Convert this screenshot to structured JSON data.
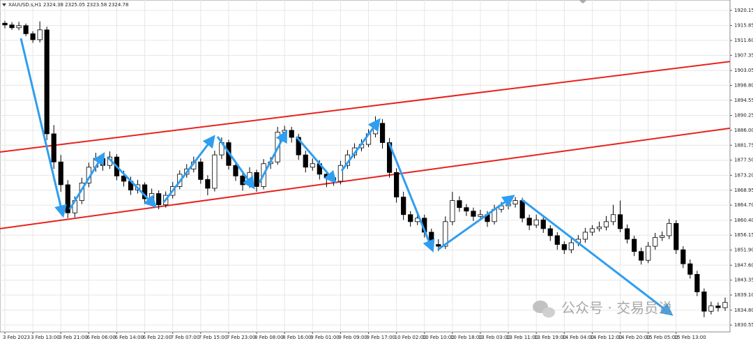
{
  "header": {
    "symbol": "XAUUSD.s,H1",
    "quote": "2324.38 2325.05 2323.58 2324.78"
  },
  "watermark": "公众号 · 交易员说",
  "chart_data": {
    "type": "candlestick",
    "categories": [
      "3 Feb 2023",
      null,
      null,
      null,
      "3 Feb 13:00",
      null,
      null,
      null,
      "3 Feb 21:00",
      null,
      null,
      null,
      "6 Feb 06:00",
      null,
      null,
      null,
      "6 Feb 14:00",
      null,
      null,
      null,
      "6 Feb 22:00",
      null,
      null,
      null,
      "7 Feb 07:00",
      null,
      null,
      null,
      "7 Feb 15:00",
      null,
      null,
      null,
      "7 Feb 23:00",
      null,
      null,
      null,
      "8 Feb 08:00",
      null,
      null,
      null,
      "8 Feb 16:00",
      null,
      null,
      null,
      "9 Feb 01:00",
      null,
      null,
      null,
      "9 Feb 09:00",
      null,
      null,
      null,
      "9 Feb 17:00",
      null,
      null,
      null,
      "10 Feb 02:00",
      null,
      null,
      null,
      "10 Feb 10:00",
      null,
      null,
      null,
      "10 Feb 18:00",
      null,
      null,
      null,
      "13 Feb 03:00",
      null,
      null,
      null,
      "13 Feb 11:00",
      null,
      null,
      null,
      "13 Feb 19:00",
      null,
      null,
      null,
      "14 Feb 04:00",
      null,
      null,
      null,
      "14 Feb 12:00",
      null,
      null,
      null,
      "14 Feb 20:00",
      null,
      null,
      null,
      "15 Feb 05:00",
      null,
      null,
      null,
      "15 Feb 13:00",
      null,
      null,
      null,
      null,
      null,
      null,
      null
    ],
    "open": [
      1916.5,
      1916.0,
      1915.2,
      1915.8,
      1913.5,
      1911.8,
      1914.6,
      1885.0,
      1877.0,
      1870.5,
      1862.5,
      1866.0,
      1871.0,
      1875.5,
      1878.0,
      1876.0,
      1878.4,
      1873.0,
      1871.5,
      1869.0,
      1870.5,
      1866.5,
      1868.0,
      1864.8,
      1867.5,
      1870.0,
      1873.5,
      1875.0,
      1877.0,
      1872.0,
      1869.5,
      1879.0,
      1882.5,
      1876.0,
      1873.0,
      1870.5,
      1874.0,
      1870.0,
      1876.5,
      1877.0,
      1885.5,
      1886.0,
      1884.0,
      1879.0,
      1875.5,
      1876.5,
      1873.5,
      1872.5,
      1871.5,
      1876.0,
      1879.0,
      1881.0,
      1882.0,
      1885.0,
      1888.0,
      1882.5,
      1874.0,
      1867.0,
      1862.0,
      1860.0,
      1861.0,
      1857.0,
      1853.5,
      1853.0,
      1860.0,
      1866.0,
      1864.0,
      1863.0,
      1861.5,
      1862.0,
      1860.0,
      1863.5,
      1864.5,
      1865.0,
      1866.0,
      1861.0,
      1859.0,
      1860.5,
      1858.0,
      1856.0,
      1853.5,
      1852.0,
      1854.0,
      1855.0,
      1857.0,
      1858.0,
      1858.5,
      1860.0,
      1862.0,
      1858.0,
      1855.0,
      1851.5,
      1849.0,
      1853.0,
      1855.5,
      1856.0,
      1859.5,
      1852.0,
      1848.0,
      1845.0,
      1840.0,
      1834.5,
      1836.0,
      1835.5
    ],
    "high": [
      1917.2,
      1916.8,
      1916.9,
      1916.4,
      1914.2,
      1917.0,
      1915.5,
      1887.5,
      1879.0,
      1871.8,
      1867.2,
      1872.5,
      1876.8,
      1879.6,
      1879.0,
      1880.0,
      1879.2,
      1874.5,
      1872.8,
      1871.9,
      1871.2,
      1869.4,
      1868.9,
      1868.6,
      1871.3,
      1874.6,
      1876.4,
      1878.5,
      1878.0,
      1873.2,
      1880.2,
      1884.0,
      1883.3,
      1877.0,
      1874.0,
      1875.5,
      1874.8,
      1877.8,
      1878.4,
      1887.0,
      1887.3,
      1887.0,
      1885.0,
      1880.2,
      1878.0,
      1877.5,
      1874.6,
      1873.8,
      1877.3,
      1880.4,
      1882.3,
      1883.5,
      1886.3,
      1890.0,
      1889.2,
      1883.8,
      1875.2,
      1868.5,
      1863.0,
      1862.6,
      1862.0,
      1858.0,
      1855.0,
      1861.5,
      1868.5,
      1867.2,
      1865.0,
      1864.0,
      1863.4,
      1863.0,
      1864.8,
      1865.6,
      1866.2,
      1867.0,
      1866.8,
      1862.0,
      1862.0,
      1861.4,
      1859.0,
      1857.0,
      1854.4,
      1855.3,
      1856.2,
      1858.2,
      1859.0,
      1860.0,
      1861.6,
      1864.8,
      1866.0,
      1859.2,
      1856.0,
      1852.6,
      1854.2,
      1856.8,
      1857.2,
      1860.8,
      1860.4,
      1853.0,
      1849.2,
      1846.0,
      1841.0,
      1837.2,
      1837.0,
      1838.4
    ],
    "low": [
      1915.0,
      1914.6,
      1914.5,
      1912.8,
      1910.9,
      1911.0,
      1883.2,
      1875.0,
      1868.5,
      1861.0,
      1861.2,
      1865.0,
      1869.8,
      1874.2,
      1874.5,
      1875.0,
      1871.8,
      1870.0,
      1867.6,
      1868.0,
      1865.0,
      1865.2,
      1863.5,
      1864.0,
      1866.6,
      1869.2,
      1872.5,
      1874.0,
      1870.8,
      1867.5,
      1868.6,
      1877.8,
      1874.8,
      1871.6,
      1868.8,
      1869.6,
      1868.5,
      1869.2,
      1875.0,
      1876.2,
      1884.2,
      1882.5,
      1877.6,
      1874.0,
      1874.5,
      1872.0,
      1869.8,
      1870.2,
      1870.6,
      1875.0,
      1878.0,
      1880.0,
      1881.2,
      1884.0,
      1880.8,
      1872.5,
      1865.4,
      1860.5,
      1858.6,
      1859.0,
      1855.5,
      1852.0,
      1851.6,
      1852.2,
      1859.0,
      1862.8,
      1861.6,
      1860.2,
      1860.6,
      1858.5,
      1859.2,
      1862.6,
      1863.5,
      1864.0,
      1859.8,
      1857.6,
      1858.2,
      1856.8,
      1854.5,
      1852.0,
      1850.8,
      1851.0,
      1853.0,
      1854.0,
      1856.0,
      1857.2,
      1857.5,
      1859.0,
      1857.0,
      1853.8,
      1850.2,
      1847.8,
      1848.2,
      1852.0,
      1854.5,
      1855.0,
      1850.8,
      1846.8,
      1843.8,
      1838.8,
      1832.8,
      1833.6,
      1834.4,
      1834.6
    ],
    "close": [
      1916.0,
      1915.2,
      1915.8,
      1913.5,
      1911.8,
      1914.6,
      1885.0,
      1877.0,
      1870.5,
      1862.5,
      1866.0,
      1871.0,
      1875.5,
      1878.0,
      1876.0,
      1878.4,
      1873.0,
      1871.5,
      1869.0,
      1870.5,
      1866.5,
      1868.0,
      1864.8,
      1867.5,
      1870.0,
      1873.5,
      1875.0,
      1877.0,
      1872.0,
      1869.5,
      1879.0,
      1882.5,
      1876.0,
      1873.0,
      1870.5,
      1874.0,
      1870.0,
      1876.5,
      1877.0,
      1885.5,
      1886.0,
      1884.0,
      1879.0,
      1875.5,
      1876.5,
      1873.5,
      1872.5,
      1871.5,
      1876.0,
      1879.0,
      1881.0,
      1882.0,
      1885.0,
      1888.0,
      1882.5,
      1874.0,
      1867.0,
      1862.0,
      1860.0,
      1861.0,
      1857.0,
      1853.5,
      1853.0,
      1860.0,
      1866.0,
      1864.0,
      1863.0,
      1861.5,
      1862.0,
      1860.0,
      1863.5,
      1864.5,
      1865.0,
      1866.0,
      1861.0,
      1859.0,
      1860.5,
      1858.0,
      1856.0,
      1853.5,
      1852.0,
      1854.0,
      1855.0,
      1857.0,
      1858.0,
      1858.5,
      1860.0,
      1862.0,
      1858.0,
      1855.0,
      1851.5,
      1849.0,
      1853.0,
      1855.5,
      1856.0,
      1859.5,
      1852.0,
      1848.0,
      1845.0,
      1840.0,
      1834.5,
      1836.0,
      1835.5,
      1837.0
    ],
    "up_color": "#ffffff",
    "down_color": "#000000",
    "wick_color": "#000000",
    "ylim": [
      1828.6,
      1923.1
    ],
    "yticks": [
      1920.15,
      1915.85,
      {
        "value": 1911.6,
        "label": "1911.60"
      },
      1907.35,
      1903.05,
      {
        "value": 1898.8,
        "label": "1898.80"
      },
      1894.55,
      1890.25,
      {
        "value": 1886,
        "label": "1886.00"
      },
      1881.75,
      {
        "value": 1877.5,
        "label": "1877.50"
      },
      {
        "value": 1873.2,
        "label": "1873.20"
      },
      1868.95,
      {
        "value": 1864.7,
        "label": "1864.70"
      },
      {
        "value": 1860.4,
        "label": "1860.40"
      },
      1856.15,
      {
        "value": 1851.9,
        "label": "1851.90"
      },
      {
        "value": 1847.6,
        "label": "1847.60"
      },
      1843.35,
      {
        "value": 1839.1,
        "label": "1839.10"
      },
      {
        "value": 1834.8,
        "label": "1834.80"
      },
      1830.55
    ],
    "grid": true,
    "trendlines": [
      {
        "x": [
          0,
          103
        ],
        "values": [
          1880.0,
          1905.4
        ],
        "color": "#e8211d"
      },
      {
        "x": [
          0,
          103
        ],
        "values": [
          1858.2,
          1886.4
        ],
        "color": "#e8211d"
      }
    ]
  }
}
